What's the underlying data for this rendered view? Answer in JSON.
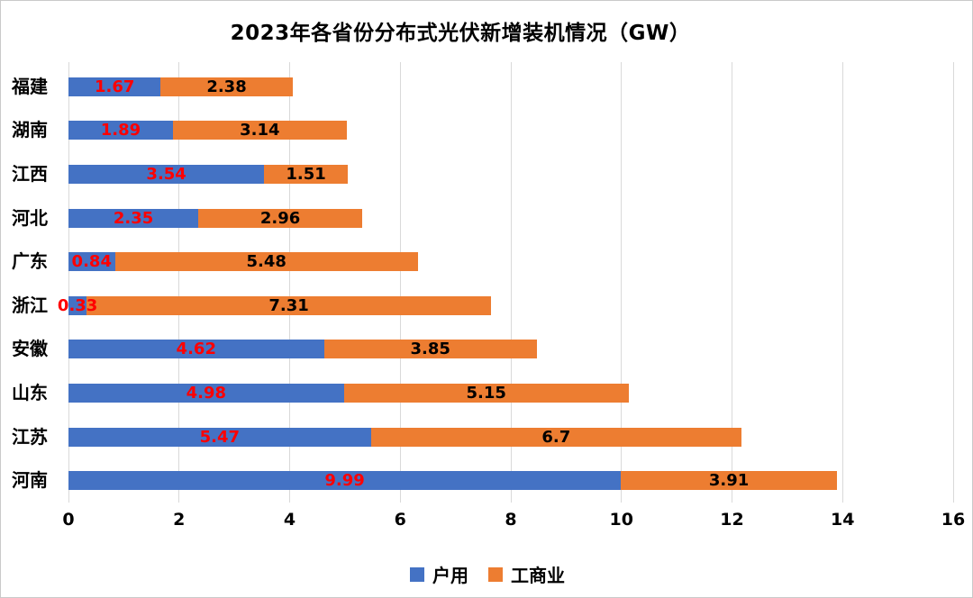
{
  "title": "2023年各省份分布式光伏新增装机情况（GW）",
  "chart_data": {
    "type": "bar",
    "orientation": "horizontal-stacked",
    "title": "2023年各省份分布式光伏新增装机情况（GW）",
    "categories": [
      "福建",
      "湖南",
      "江西",
      "河北",
      "广东",
      "浙江",
      "安徽",
      "山东",
      "江苏",
      "河南"
    ],
    "series": [
      {
        "name": "户用",
        "color": "#4472C4",
        "label_color": "#FF0000",
        "values": [
          1.67,
          1.89,
          3.54,
          2.35,
          0.84,
          0.33,
          4.62,
          4.98,
          5.47,
          9.99
        ]
      },
      {
        "name": "工商业",
        "color": "#ED7D31",
        "label_color": "#000000",
        "values": [
          2.38,
          3.14,
          1.51,
          2.96,
          5.48,
          7.31,
          3.85,
          5.15,
          6.7,
          3.91
        ]
      }
    ],
    "xlabel": "",
    "ylabel": "",
    "xlim": [
      0,
      16
    ],
    "xticks": [
      0,
      2,
      4,
      6,
      8,
      10,
      12,
      14,
      16
    ],
    "grid": true,
    "gridline_color": "#d9d9d9",
    "legend_position": "bottom"
  },
  "legend": {
    "items": [
      {
        "label": "户用",
        "color": "#4472C4"
      },
      {
        "label": "工商业",
        "color": "#ED7D31"
      }
    ]
  }
}
